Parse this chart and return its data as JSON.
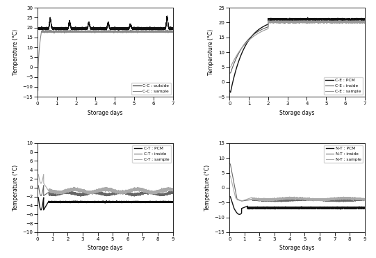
{
  "subplot1": {
    "xlabel": "Storage days",
    "ylabel": "Temperature (°C)",
    "xlim": [
      0,
      7
    ],
    "ylim": [
      -15,
      30
    ],
    "yticks": [
      -15,
      -10,
      -5,
      0,
      5,
      10,
      15,
      20,
      25,
      30
    ],
    "xticks": [
      0,
      1,
      2,
      3,
      4,
      5,
      6,
      7
    ],
    "lines": [
      {
        "label": "C-C : outside",
        "color": "#111111",
        "lw": 0.8
      },
      {
        "label": "C-C : sample",
        "color": "#888888",
        "lw": 0.8
      }
    ]
  },
  "subplot2": {
    "xlabel": "Storage days",
    "ylabel": "Temperature (°C)",
    "xlim": [
      0,
      7
    ],
    "ylim": [
      -5,
      25
    ],
    "yticks": [
      -5,
      0,
      5,
      10,
      15,
      20,
      25
    ],
    "xticks": [
      0,
      1,
      2,
      3,
      4,
      5,
      6,
      7
    ],
    "lines": [
      {
        "label": "C-E : PCM",
        "color": "#111111",
        "lw": 1.0
      },
      {
        "label": "C-E : inside",
        "color": "#555555",
        "lw": 0.8
      },
      {
        "label": "C-E : sample",
        "color": "#999999",
        "lw": 0.8
      }
    ]
  },
  "subplot3": {
    "xlabel": "Storage days",
    "ylabel": "Temperature (°C)",
    "xlim": [
      0,
      9
    ],
    "ylim": [
      -10,
      10
    ],
    "yticks": [
      -10,
      -8,
      -6,
      -4,
      -2,
      0,
      2,
      4,
      6,
      8,
      10
    ],
    "xticks": [
      0,
      1,
      2,
      3,
      4,
      5,
      6,
      7,
      8,
      9
    ],
    "lines": [
      {
        "label": "C-T : PCM",
        "color": "#111111",
        "lw": 1.0
      },
      {
        "label": "C-T : inside",
        "color": "#666666",
        "lw": 0.8
      },
      {
        "label": "C-T : sample",
        "color": "#aaaaaa",
        "lw": 0.8
      }
    ]
  },
  "subplot4": {
    "xlabel": "Storage days",
    "ylabel": "Temperature (°C)",
    "xlim": [
      0,
      9
    ],
    "ylim": [
      -15,
      15
    ],
    "yticks": [
      -15,
      -10,
      -5,
      0,
      5,
      10,
      15
    ],
    "xticks": [
      0,
      1,
      2,
      3,
      4,
      5,
      6,
      7,
      8,
      9
    ],
    "lines": [
      {
        "label": "N-T : PCM",
        "color": "#111111",
        "lw": 1.0
      },
      {
        "label": "N-T : inside",
        "color": "#666666",
        "lw": 0.8
      },
      {
        "label": "N-T : sample",
        "color": "#aaaaaa",
        "lw": 0.8
      }
    ]
  },
  "background_color": "#ffffff"
}
